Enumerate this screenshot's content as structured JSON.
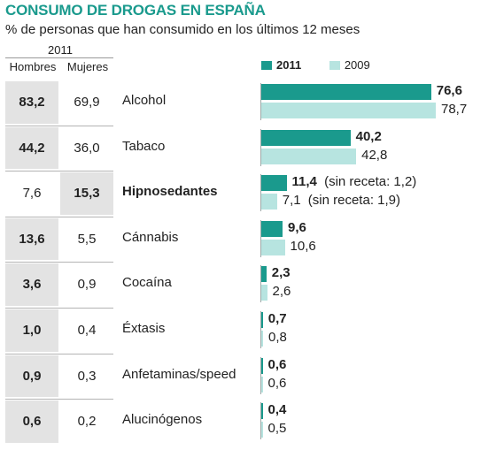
{
  "title": "CONSUMO DE DROGAS EN ESPAÑA",
  "subtitle": "% de personas que han consumido en los últimos 12 meses",
  "table_header": {
    "year": "2011",
    "men": "Hombres",
    "women": "Mujeres"
  },
  "legend": {
    "series_2011": "2011",
    "series_2009": "2009"
  },
  "colors": {
    "title": "#1a9a8d",
    "bar_2011": "#1a9a8d",
    "bar_2009": "#b7e4e0",
    "highlight_cell": "#e3e3e3"
  },
  "chart_data": {
    "type": "bar",
    "orientation": "horizontal",
    "categories": [
      "Alcohol",
      "Tabaco",
      "Hipnosedantes",
      "Cánnabis",
      "Cocaína",
      "Éxtasis",
      "Anfetaminas/speed",
      "Alucinógenos"
    ],
    "emphasized_category": "Hipnosedantes",
    "series": [
      {
        "name": "2011",
        "values": [
          76.6,
          40.2,
          11.4,
          9.6,
          2.3,
          0.7,
          0.6,
          0.4
        ],
        "labels": [
          "76,6",
          "40,2",
          "11,4",
          "9,6",
          "2,3",
          "0,7",
          "0,6",
          "0,4"
        ]
      },
      {
        "name": "2009",
        "values": [
          78.7,
          42.8,
          7.1,
          10.6,
          2.6,
          0.8,
          0.6,
          0.5
        ],
        "labels": [
          "78,7",
          "42,8",
          "7,1",
          "10,6",
          "2,6",
          "0,8",
          "0,6",
          "0,5"
        ]
      }
    ],
    "annotations": {
      "2011": {
        "Hipnosedantes": "(sin receta: 1,2)"
      },
      "2009": {
        "Hipnosedantes": "(sin receta: 1,9)"
      }
    },
    "side_table": {
      "year": "2011",
      "columns": [
        "Hombres",
        "Mujeres"
      ],
      "men": [
        "83,2",
        "44,2",
        "7,6",
        "13,6",
        "3,6",
        "1,0",
        "0,9",
        "0,6"
      ],
      "women": [
        "69,9",
        "36,0",
        "15,3",
        "5,5",
        "0,9",
        "0,4",
        "0,3",
        "0,2"
      ],
      "highlight": [
        "men",
        "men",
        "women",
        "men",
        "men",
        "men",
        "men",
        "men"
      ]
    },
    "xlim": [
      0,
      78.7
    ],
    "grid": false,
    "legend_position": "top"
  }
}
